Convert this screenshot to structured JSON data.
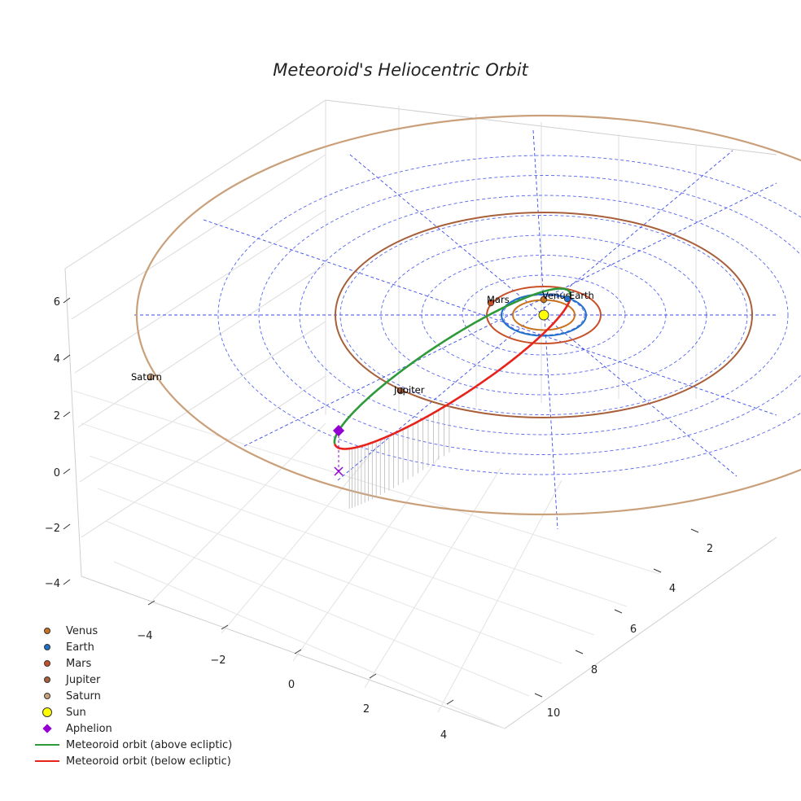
{
  "chart_data": {
    "type": "scatter3d",
    "title": "Meteoroid's Heliocentric Orbit",
    "axes": {
      "x_ticks": [
        "−4",
        "−2",
        "0",
        "2",
        "4"
      ],
      "y_ticks": [
        "2",
        "4",
        "6",
        "8",
        "10"
      ],
      "z_ticks": [
        "6",
        "4",
        "2",
        "0",
        "−2",
        "−4"
      ]
    },
    "planets": [
      {
        "name": "Venus",
        "label": "Venus",
        "color": "#c8731f"
      },
      {
        "name": "Earth",
        "label": "Earth",
        "color": "#1f70c8"
      },
      {
        "name": "Mars",
        "label": "Mars",
        "color": "#c84f28"
      },
      {
        "name": "Jupiter",
        "label": "Jupiter",
        "color": "#a8603a"
      },
      {
        "name": "Saturn",
        "label": "Saturn",
        "color": "#c9a07a"
      }
    ],
    "sun": {
      "name": "Sun",
      "color": "#ffff00"
    },
    "aphelion": {
      "name": "Aphelion",
      "color": "#9400d3"
    },
    "meteoroid_above": {
      "name": "Meteoroid orbit (above ecliptic)",
      "color": "#2e9a3a"
    },
    "meteoroid_below": {
      "name": "Meteoroid orbit (below ecliptic)",
      "color": "#e8231c"
    },
    "grid": true
  },
  "legend": [
    {
      "label": "Venus",
      "kind": "dot",
      "color": "#c8731f"
    },
    {
      "label": "Earth",
      "kind": "dot",
      "color": "#1f70c8"
    },
    {
      "label": "Mars",
      "kind": "dot",
      "color": "#c84f28"
    },
    {
      "label": "Jupiter",
      "kind": "dot",
      "color": "#a8603a"
    },
    {
      "label": "Saturn",
      "kind": "dot",
      "color": "#c9a07a"
    },
    {
      "label": "Sun",
      "kind": "bigdot",
      "color": "#ffff00"
    },
    {
      "label": "Aphelion",
      "kind": "diamond",
      "color": "#9400d3"
    },
    {
      "label": "Meteoroid orbit (above ecliptic)",
      "kind": "line",
      "color": "#2e9a3a"
    },
    {
      "label": "Meteoroid orbit (below ecliptic)",
      "kind": "line",
      "color": "#e8231c"
    }
  ]
}
